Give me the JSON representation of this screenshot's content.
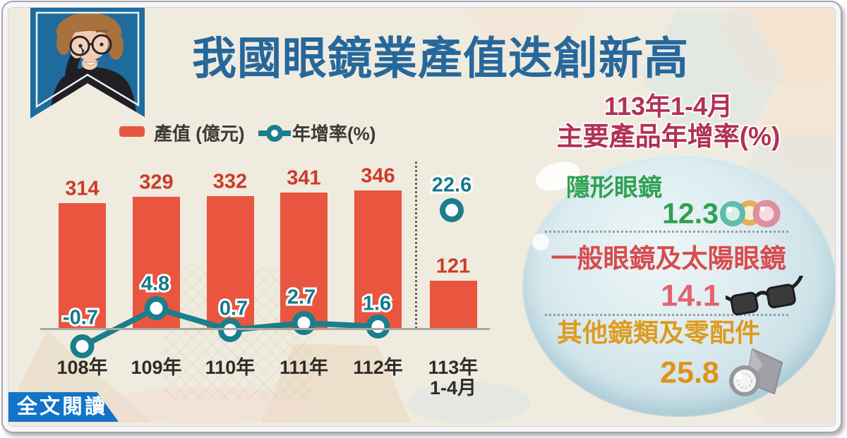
{
  "poster": {
    "title": "我國眼鏡業產值迭創新高",
    "read_more_label": "全文閱讀"
  },
  "legend": {
    "bar_label": "產值 (億元)",
    "line_label": "年增率(%)"
  },
  "chart_data": {
    "type": "bar+line",
    "title": "我國眼鏡業產值迭創新高",
    "bar_series_name": "產值 (億元)",
    "line_series_name": "年增率(%)",
    "categories": [
      {
        "label": "108年"
      },
      {
        "label": "109年"
      },
      {
        "label": "110年"
      },
      {
        "label": "111年"
      },
      {
        "label": "112年"
      },
      {
        "label": "113年",
        "sublabel": "1-4月"
      }
    ],
    "series": [
      {
        "name": "產值 (億元)",
        "type": "bar",
        "unit": "億元",
        "color": "#e9553f",
        "values": [
          314,
          329,
          332,
          341,
          346,
          121
        ]
      },
      {
        "name": "年增率(%)",
        "type": "line",
        "unit": "%",
        "color": "#1a7e8c",
        "values": [
          -0.7,
          4.8,
          0.7,
          2.7,
          1.6,
          22.6
        ]
      }
    ],
    "grid": false,
    "legend_position": "top"
  },
  "right_panel": {
    "title_line1": "113年1-4月",
    "title_line2": "主要產品年增率(%)",
    "items": [
      {
        "label": "隱形眼鏡",
        "value": "12.3",
        "icon": "contact-lenses",
        "color": "#2ea152"
      },
      {
        "label": "一般眼鏡及太陽眼鏡",
        "value": "14.1",
        "icon": "sunglasses",
        "color": "#d94b4d"
      },
      {
        "label": "其他鏡類及零配件",
        "value": "25.8",
        "icon": "lens-accessories",
        "color": "#dd9b1f"
      }
    ]
  },
  "colors": {
    "background": "#f0ebdf",
    "title": "#26689b",
    "bar": "#e9553f",
    "bar_label": "#cb3b2a",
    "line": "#1a7e8c",
    "header_accent": "#b13058",
    "badge": "#1274c8",
    "ribbon": "#1e6b9e"
  }
}
